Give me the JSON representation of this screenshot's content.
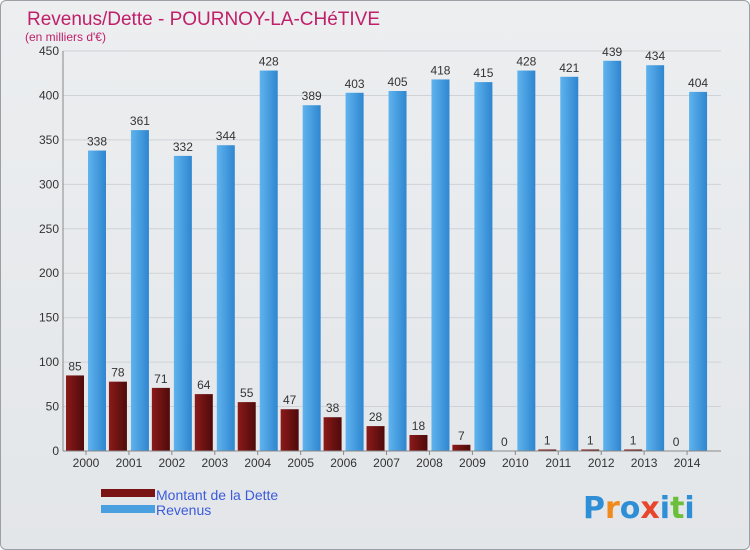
{
  "chart_data": {
    "type": "bar",
    "title": "Revenus/Dette - POURNOY-LA-CHéTIVE",
    "subtitle": "(en milliers d'€)",
    "categories": [
      "2000",
      "2001",
      "2002",
      "2003",
      "2004",
      "2005",
      "2006",
      "2007",
      "2008",
      "2009",
      "2010",
      "2011",
      "2012",
      "2013",
      "2014"
    ],
    "series": [
      {
        "name": "Montant de la Dette",
        "color": "#7a1414",
        "values": [
          85,
          78,
          71,
          64,
          55,
          47,
          38,
          28,
          18,
          7,
          0,
          1,
          1,
          1,
          0
        ]
      },
      {
        "name": "Revenus",
        "color": "#4a9fe0",
        "values": [
          338,
          361,
          332,
          344,
          428,
          389,
          403,
          405,
          418,
          415,
          428,
          421,
          439,
          434,
          404
        ]
      }
    ],
    "ylim": [
      0,
      450
    ],
    "yticks": [
      0,
      50,
      100,
      150,
      200,
      250,
      300,
      350,
      400,
      450
    ],
    "grid": true,
    "legend": "bottom-left",
    "xlabel": "",
    "ylabel": ""
  },
  "logo": {
    "text": "Proxiti",
    "letters": [
      "P",
      "r",
      "o",
      "x",
      "i",
      "t",
      "i"
    ],
    "colors": [
      "#2e8fd6",
      "#f08a1c",
      "#2e8fd6",
      "#e8452c",
      "#2e8fd6",
      "#6bbf3a",
      "#2e8fd6"
    ]
  }
}
